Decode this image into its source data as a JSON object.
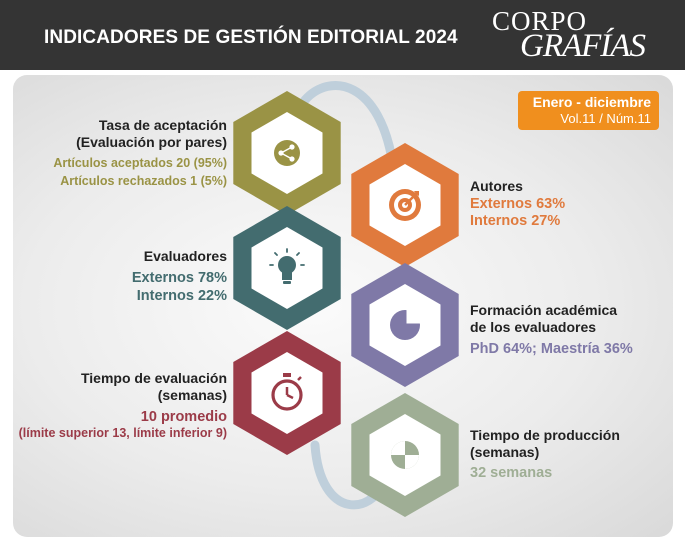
{
  "header": {
    "title": "INDICADORES DE GESTIÓN EDITORIAL 2024",
    "logo_line1": "CORPO",
    "logo_line2": "GRAFÍAS"
  },
  "badge": {
    "period": "Enero - diciembre",
    "issue": "Vol.11 / Núm.11"
  },
  "colors": {
    "olive": "#9a9345",
    "orange": "#e07a3d",
    "teal": "#436c6f",
    "purple": "#7f79a7",
    "crimson": "#9b3b48",
    "sage": "#9fae95",
    "connector": "#bfcfdb",
    "badge": "#f08f1e",
    "header_bg": "#343434"
  },
  "indicators": [
    {
      "title1": "Tasa de aceptación",
      "title2": "(Evaluación por pares)",
      "line1": "Artículos aceptados 20 (95%)",
      "line2": "Artículos rechazados 1 (5%)",
      "icon": "share-icon"
    },
    {
      "title1": "Autores",
      "line1": "Externos 63%",
      "line2": "Internos 27%",
      "icon": "target-icon"
    },
    {
      "title1": "Evaluadores",
      "line1": "Externos 78%",
      "line2": "Internos 22%",
      "icon": "lightbulb-icon"
    },
    {
      "title1": "Formación académica",
      "title2": "de los evaluadores",
      "line1": "PhD 64%; Maestría 36%",
      "icon": "pie-chart-icon"
    },
    {
      "title1": "Tiempo de evaluación",
      "title2": "(semanas)",
      "line1": "10 promedio",
      "line2": "(límite superior 13, límite inferior 9)",
      "icon": "stopwatch-icon"
    },
    {
      "title1": "Tiempo de producción",
      "title2": "(semanas)",
      "line1": "32 semanas",
      "icon": "progress-circle-icon"
    }
  ]
}
